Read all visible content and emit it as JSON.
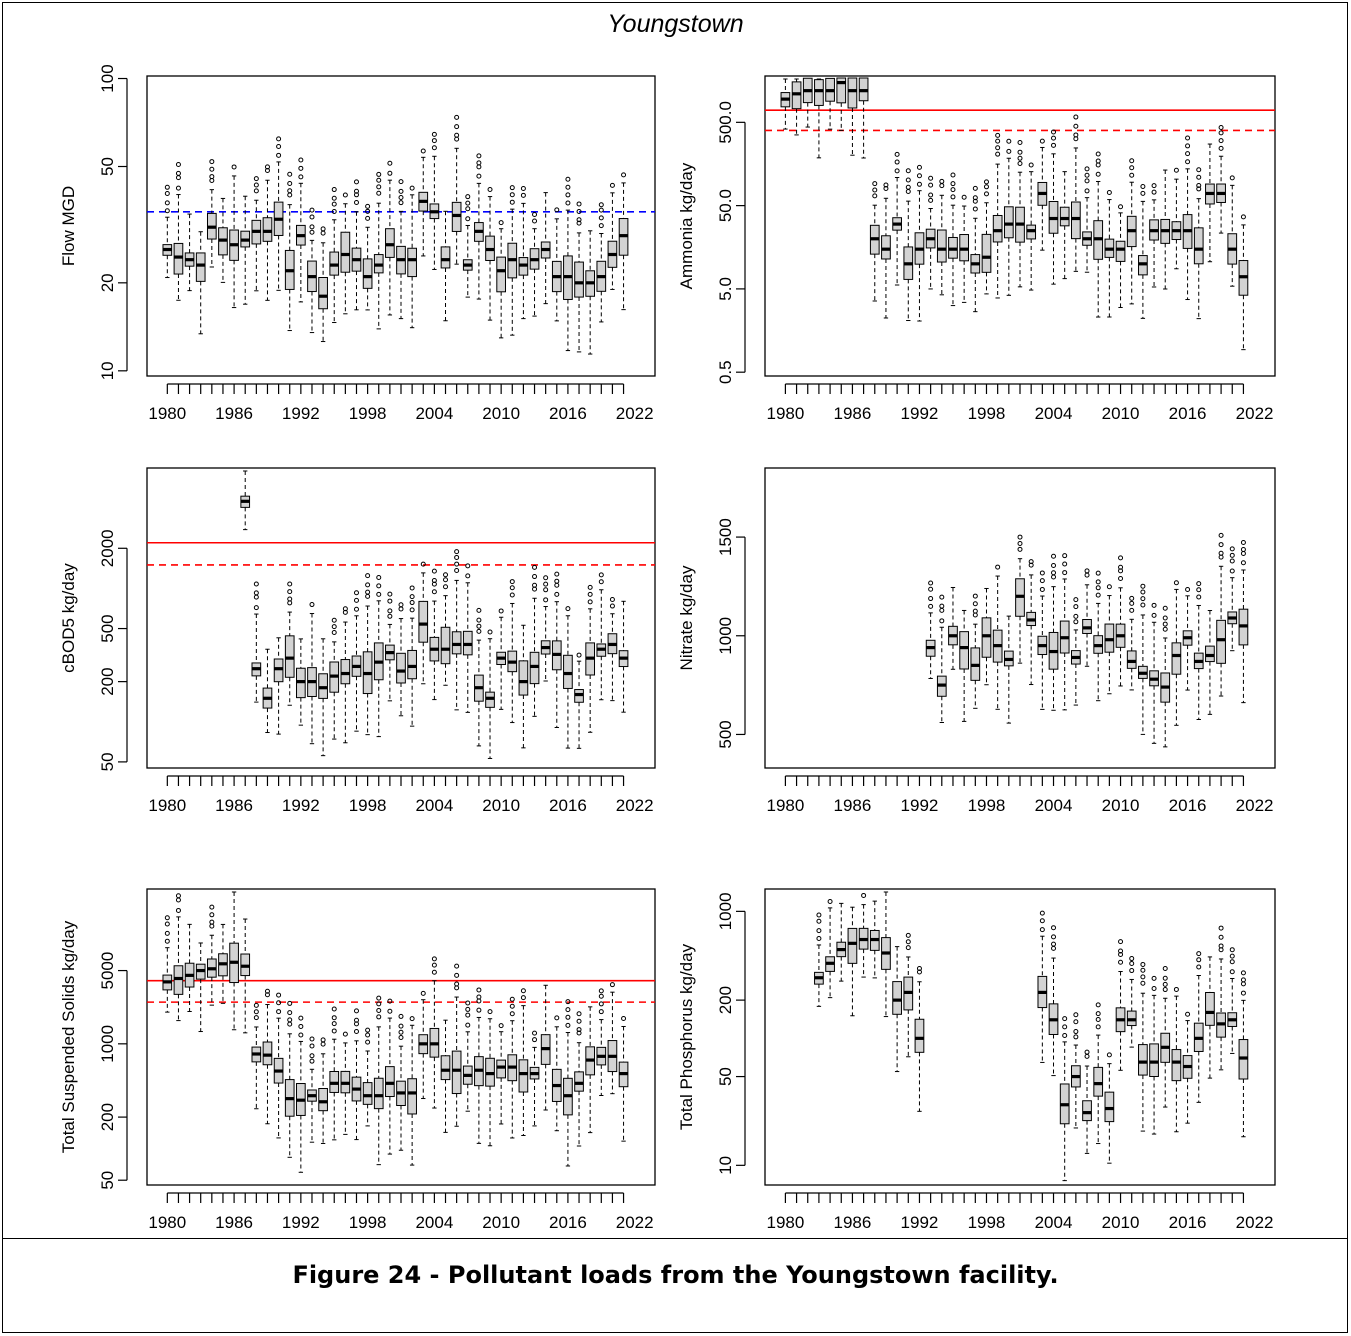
{
  "title": "Youngstown",
  "caption": "Figure 24 - Pollutant loads from the Youngstown facility.",
  "colors": {
    "box_fill": "#d3d3d3",
    "limit_line": "#ff0000",
    "flow_ref_line": "#0000ff",
    "axis": "#000000"
  },
  "chart_data": [
    {
      "type": "box",
      "ylabel": "Flow MGD",
      "log_y": true,
      "ylim": [
        9.6,
        102
      ],
      "y_ticks": [
        10,
        20,
        50,
        100
      ],
      "y_tick_labels": [
        "10",
        "20",
        "50",
        "100"
      ],
      "x_tick_labels": [
        "1980",
        "1986",
        "1992",
        "1998",
        "2004",
        "2010",
        "2016",
        "2022"
      ],
      "x_range": [
        1980,
        2022
      ],
      "ref_lines": [
        {
          "y": 35,
          "color": "blue",
          "style": "dashed"
        }
      ],
      "medians": [
        [
          1980,
          26
        ],
        [
          1981,
          24.5
        ],
        [
          1982,
          24
        ],
        [
          1983,
          23
        ],
        [
          1984,
          31
        ],
        [
          1985,
          28
        ],
        [
          1986,
          27
        ],
        [
          1987,
          28
        ],
        [
          1988,
          30
        ],
        [
          1989,
          30
        ],
        [
          1990,
          33
        ],
        [
          1991,
          22
        ],
        [
          1992,
          29
        ],
        [
          1993,
          21
        ],
        [
          1994,
          18
        ],
        [
          1995,
          23
        ],
        [
          1996,
          25
        ],
        [
          1997,
          24
        ],
        [
          1998,
          21
        ],
        [
          1999,
          23
        ],
        [
          2000,
          27
        ],
        [
          2001,
          24
        ],
        [
          2002,
          24
        ],
        [
          2003,
          38
        ],
        [
          2004,
          35
        ],
        [
          2005,
          24
        ],
        [
          2006,
          34
        ],
        [
          2007,
          23
        ],
        [
          2008,
          30
        ],
        [
          2009,
          26
        ],
        [
          2010,
          22
        ],
        [
          2011,
          24
        ],
        [
          2012,
          23
        ],
        [
          2013,
          24
        ],
        [
          2014,
          26
        ],
        [
          2015,
          21
        ],
        [
          2016,
          21
        ],
        [
          2017,
          20
        ],
        [
          2018,
          20
        ],
        [
          2019,
          21
        ],
        [
          2020,
          25
        ],
        [
          2021,
          29
        ]
      ]
    },
    {
      "type": "box",
      "ylabel": "Ammonia kg/day",
      "log_y": true,
      "ylim": [
        0.45,
        1800
      ],
      "y_ticks": [
        0.5,
        5,
        50,
        500
      ],
      "y_tick_labels": [
        "0.5",
        "5.0",
        "50.0",
        "500.0"
      ],
      "x_tick_labels": [
        "1980",
        "1986",
        "1992",
        "1998",
        "2004",
        "2010",
        "2016",
        "2022"
      ],
      "x_range": [
        1980,
        2022
      ],
      "ref_lines": [
        {
          "y": 700,
          "color": "red",
          "style": "solid"
        },
        {
          "y": 400,
          "color": "red",
          "style": "dashed"
        }
      ],
      "medians": [
        [
          1980,
          950
        ],
        [
          1981,
          1100
        ],
        [
          1982,
          1200
        ],
        [
          1983,
          1200
        ],
        [
          1984,
          1200
        ],
        [
          1985,
          1500
        ],
        [
          1986,
          1200
        ],
        [
          1987,
          1200
        ],
        [
          1988,
          20
        ],
        [
          1989,
          15
        ],
        [
          1990,
          30
        ],
        [
          1991,
          10
        ],
        [
          1992,
          15
        ],
        [
          1993,
          20
        ],
        [
          1994,
          15
        ],
        [
          1995,
          15
        ],
        [
          1996,
          15
        ],
        [
          1997,
          10
        ],
        [
          1998,
          12
        ],
        [
          1999,
          25
        ],
        [
          2000,
          30
        ],
        [
          2001,
          30
        ],
        [
          2002,
          25
        ],
        [
          2003,
          70
        ],
        [
          2004,
          35
        ],
        [
          2005,
          35
        ],
        [
          2006,
          35
        ],
        [
          2007,
          20
        ],
        [
          2008,
          20
        ],
        [
          2009,
          15
        ],
        [
          2010,
          15
        ],
        [
          2011,
          25
        ],
        [
          2012,
          10
        ],
        [
          2013,
          25
        ],
        [
          2014,
          25
        ],
        [
          2015,
          25
        ],
        [
          2016,
          25
        ],
        [
          2017,
          15
        ],
        [
          2018,
          70
        ],
        [
          2019,
          70
        ],
        [
          2020,
          15
        ],
        [
          2021,
          7
        ]
      ]
    },
    {
      "type": "box",
      "ylabel": "cBOD5 kg/day",
      "log_y": true,
      "ylim": [
        45,
        8000
      ],
      "y_ticks": [
        50,
        200,
        500,
        2000
      ],
      "y_tick_labels": [
        "50",
        "200",
        "500",
        "2000"
      ],
      "x_tick_labels": [
        "1980",
        "1986",
        "1992",
        "1998",
        "2004",
        "2010",
        "2016",
        "2022"
      ],
      "x_range": [
        1980,
        2022
      ],
      "ref_lines": [
        {
          "y": 2200,
          "color": "red",
          "style": "solid"
        },
        {
          "y": 1500,
          "color": "red",
          "style": "dashed"
        }
      ],
      "medians": [
        [
          1987,
          4500
        ],
        [
          1988,
          250
        ],
        [
          1989,
          150
        ],
        [
          1990,
          250
        ],
        [
          1991,
          300
        ],
        [
          1992,
          200
        ],
        [
          1993,
          200
        ],
        [
          1994,
          180
        ],
        [
          1995,
          220
        ],
        [
          1996,
          230
        ],
        [
          1997,
          260
        ],
        [
          1998,
          230
        ],
        [
          1999,
          280
        ],
        [
          2000,
          330
        ],
        [
          2001,
          240
        ],
        [
          2002,
          260
        ],
        [
          2003,
          540
        ],
        [
          2004,
          350
        ],
        [
          2005,
          350
        ],
        [
          2006,
          380
        ],
        [
          2007,
          380
        ],
        [
          2008,
          180
        ],
        [
          2009,
          150
        ],
        [
          2010,
          300
        ],
        [
          2011,
          280
        ],
        [
          2012,
          200
        ],
        [
          2013,
          260
        ],
        [
          2014,
          360
        ],
        [
          2015,
          320
        ],
        [
          2016,
          230
        ],
        [
          2017,
          160
        ],
        [
          2018,
          300
        ],
        [
          2019,
          350
        ],
        [
          2020,
          380
        ],
        [
          2021,
          300
        ]
      ]
    },
    {
      "type": "box",
      "ylabel": "Nitrate kg/day",
      "log_y": false,
      "ylim": [
        330,
        1850
      ],
      "y_ticks": [
        500,
        1000,
        1500
      ],
      "y_tick_labels": [
        "500",
        "1000",
        "1500"
      ],
      "x_tick_labels": [
        "1980",
        "1986",
        "1992",
        "1998",
        "2004",
        "2010",
        "2016",
        "2022"
      ],
      "x_range": [
        1980,
        2022
      ],
      "ref_lines": [],
      "medians": [
        [
          1993,
          940
        ],
        [
          1994,
          750
        ],
        [
          1995,
          1000
        ],
        [
          1996,
          940
        ],
        [
          1997,
          850
        ],
        [
          1998,
          1000
        ],
        [
          1999,
          950
        ],
        [
          2000,
          880
        ],
        [
          2001,
          1200
        ],
        [
          2002,
          1080
        ],
        [
          2003,
          950
        ],
        [
          2004,
          920
        ],
        [
          2005,
          990
        ],
        [
          2006,
          890
        ],
        [
          2007,
          1040
        ],
        [
          2008,
          950
        ],
        [
          2009,
          980
        ],
        [
          2010,
          1000
        ],
        [
          2011,
          870
        ],
        [
          2012,
          810
        ],
        [
          2013,
          780
        ],
        [
          2014,
          740
        ],
        [
          2015,
          900
        ],
        [
          2016,
          990
        ],
        [
          2017,
          870
        ],
        [
          2018,
          900
        ],
        [
          2019,
          980
        ],
        [
          2020,
          1090
        ],
        [
          2021,
          1050
        ]
      ]
    },
    {
      "type": "box",
      "ylabel": "Total Suspended Solids kg/day",
      "log_y": true,
      "ylim": [
        45,
        30000
      ],
      "y_ticks": [
        50,
        200,
        1000,
        5000
      ],
      "y_tick_labels": [
        "50",
        "200",
        "1000",
        "5000"
      ],
      "x_tick_labels": [
        "1980",
        "1986",
        "1992",
        "1998",
        "2004",
        "2010",
        "2016",
        "2022"
      ],
      "x_range": [
        1980,
        2022
      ],
      "ref_lines": [
        {
          "y": 4000,
          "color": "red",
          "style": "solid"
        },
        {
          "y": 2500,
          "color": "red",
          "style": "dashed"
        }
      ],
      "medians": [
        [
          1980,
          3900
        ],
        [
          1981,
          4200
        ],
        [
          1982,
          4500
        ],
        [
          1983,
          5000
        ],
        [
          1984,
          5200
        ],
        [
          1985,
          5800
        ],
        [
          1986,
          6000
        ],
        [
          1987,
          5500
        ],
        [
          1988,
          800
        ],
        [
          1989,
          780
        ],
        [
          1990,
          550
        ],
        [
          1991,
          300
        ],
        [
          1992,
          290
        ],
        [
          1993,
          320
        ],
        [
          1994,
          280
        ],
        [
          1995,
          420
        ],
        [
          1996,
          420
        ],
        [
          1997,
          370
        ],
        [
          1998,
          320
        ],
        [
          1999,
          320
        ],
        [
          2000,
          420
        ],
        [
          2001,
          340
        ],
        [
          2002,
          340
        ],
        [
          2003,
          1000
        ],
        [
          2004,
          1000
        ],
        [
          2005,
          560
        ],
        [
          2006,
          560
        ],
        [
          2007,
          500
        ],
        [
          2008,
          560
        ],
        [
          2009,
          520
        ],
        [
          2010,
          600
        ],
        [
          2011,
          600
        ],
        [
          2012,
          520
        ],
        [
          2013,
          520
        ],
        [
          2014,
          900
        ],
        [
          2015,
          400
        ],
        [
          2016,
          320
        ],
        [
          2017,
          420
        ],
        [
          2018,
          700
        ],
        [
          2019,
          760
        ],
        [
          2020,
          760
        ],
        [
          2021,
          520
        ]
      ]
    },
    {
      "type": "box",
      "ylabel": "Total Phosphorus kg/day",
      "log_y": true,
      "ylim": [
        7,
        1500
      ],
      "y_ticks": [
        10,
        50,
        200,
        1000
      ],
      "y_tick_labels": [
        "10",
        "50",
        "200",
        "1000"
      ],
      "x_tick_labels": [
        "1980",
        "1986",
        "1992",
        "1998",
        "2004",
        "2010",
        "2016",
        "2022"
      ],
      "x_range": [
        1980,
        2022
      ],
      "ref_lines": [],
      "medians": [
        [
          1983,
          300
        ],
        [
          1984,
          390
        ],
        [
          1985,
          500
        ],
        [
          1986,
          560
        ],
        [
          1987,
          600
        ],
        [
          1988,
          600
        ],
        [
          1989,
          470
        ],
        [
          1990,
          200
        ],
        [
          1991,
          230
        ],
        [
          1992,
          100
        ],
        [
          2003,
          230
        ],
        [
          2004,
          140
        ],
        [
          2005,
          30
        ],
        [
          2006,
          50
        ],
        [
          2007,
          26
        ],
        [
          2008,
          44
        ],
        [
          2009,
          28
        ],
        [
          2010,
          140
        ],
        [
          2011,
          140
        ],
        [
          2012,
          65
        ],
        [
          2013,
          65
        ],
        [
          2014,
          85
        ],
        [
          2015,
          65
        ],
        [
          2016,
          60
        ],
        [
          2017,
          100
        ],
        [
          2018,
          160
        ],
        [
          2019,
          130
        ],
        [
          2020,
          140
        ],
        [
          2021,
          70
        ]
      ]
    }
  ]
}
